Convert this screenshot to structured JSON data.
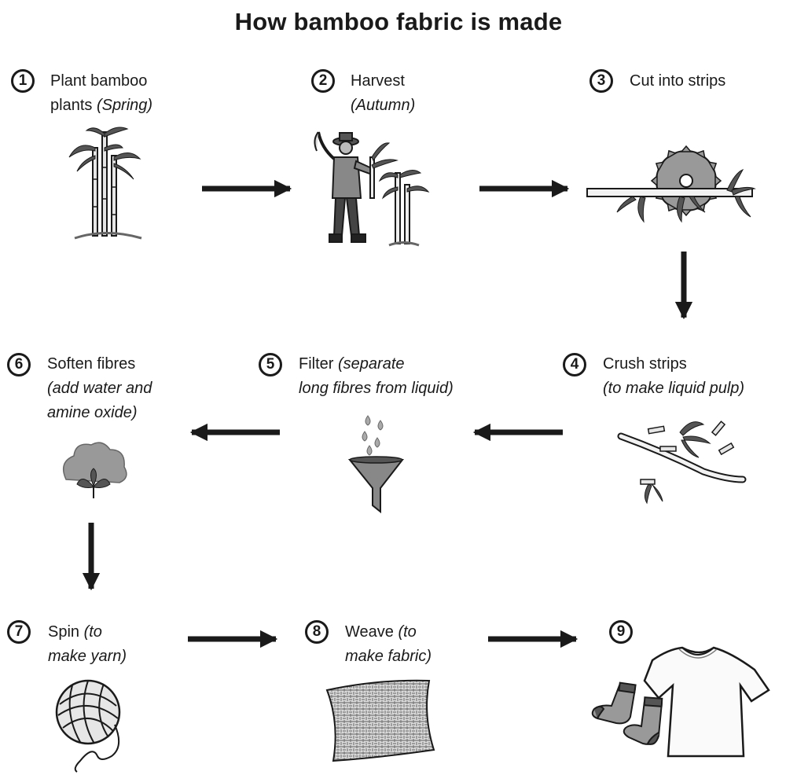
{
  "title": "How bamboo fabric is made",
  "colors": {
    "ink": "#1a1a1a",
    "grey": "#8c8c8c",
    "light": "#d9d9d9"
  },
  "steps": [
    {
      "number": "1",
      "line1": "Plant bamboo",
      "line2_plain": "plants ",
      "line2_italic": "(Spring)",
      "icon": "bamboo-plant-icon"
    },
    {
      "number": "2",
      "line1": "Harvest",
      "line2_italic": "(Autumn)",
      "icon": "farmer-harvesting-icon"
    },
    {
      "number": "3",
      "line1": "Cut into strips",
      "icon": "circular-saw-icon"
    },
    {
      "number": "4",
      "line1": "Crush strips",
      "line2_italic": "(to make liquid pulp)",
      "icon": "crushed-bamboo-icon"
    },
    {
      "number": "5",
      "line1_plain": "Filter ",
      "line1_italic": "(separate",
      "line2_italic": "long fibres from liquid)",
      "icon": "funnel-icon"
    },
    {
      "number": "6",
      "line1": "Soften fibres",
      "line2_italic": "(add water and",
      "line3_italic": "amine oxide)",
      "icon": "cotton-flower-icon"
    },
    {
      "number": "7",
      "line1_plain": "Spin ",
      "line1_italic": "(to",
      "line2_italic": "make yarn)",
      "icon": "yarn-ball-icon"
    },
    {
      "number": "8",
      "line1_plain": "Weave ",
      "line1_italic": "(to",
      "line2_italic": "make fabric)",
      "icon": "woven-fabric-icon"
    },
    {
      "number": "9",
      "icon": "tshirt-and-socks-icon"
    }
  ]
}
